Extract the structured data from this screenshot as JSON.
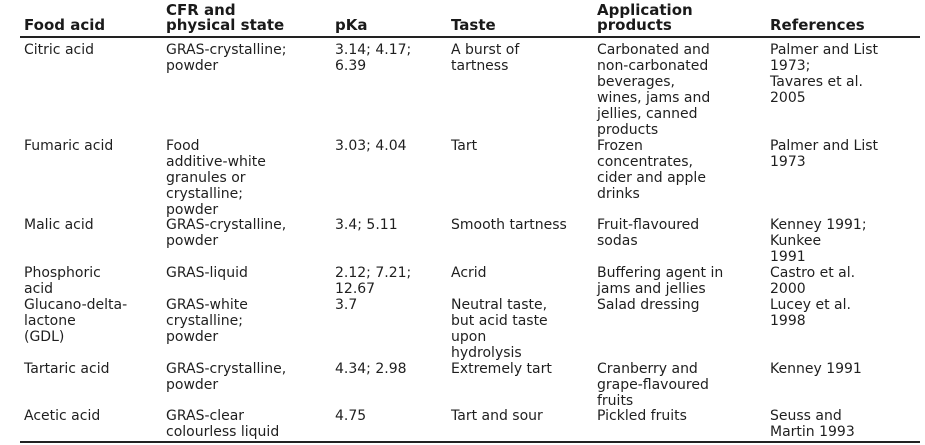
{
  "headers": {
    "food_acid": "Food acid",
    "cfr": "CFR and\nphysical state",
    "pka": "pKa",
    "taste": "Taste",
    "application": "Application\nproducts",
    "references": "References"
  },
  "rows": [
    {
      "food_acid": "Citric acid",
      "cfr": "GRAS-crystalline;\n   powder",
      "pka": "3.14; 4.17;\n   6.39",
      "taste": "A burst of\n   tartness",
      "application": "Carbonated and\n   non-carbonated\n   beverages,\n   wines, jams and\n   jellies, canned\n   products",
      "references": "Palmer and List\n   1973;\n   Tavares et al.\n   2005"
    },
    {
      "food_acid": "Fumaric acid",
      "cfr": "Food\n   additive-white\n   granules or\n   crystalline;\n   powder",
      "pka": "3.03; 4.04",
      "taste": "Tart",
      "application": "Frozen\n   concentrates,\n   cider and apple\n   drinks",
      "references": "Palmer and List\n   1973"
    },
    {
      "food_acid": "Malic acid",
      "cfr": "GRAS-crystalline,\n   powder",
      "pka": "3.4; 5.11",
      "taste": "Smooth tartness",
      "application": "Fruit-flavoured\n   sodas",
      "references": "Kenney 1991;\n   Kunkee\n   1991"
    },
    {
      "food_acid": "Phosphoric\n   acid",
      "cfr": "GRAS-liquid",
      "pka": "2.12; 7.21;\n   12.67",
      "taste": "Acrid",
      "application": "Buffering agent in\n   jams and jellies",
      "references": "Castro et al.\n   2000"
    },
    {
      "food_acid": "Glucano-delta-\n   lactone\n   (GDL)",
      "cfr": "GRAS-white\n   crystalline;\n   powder",
      "pka": "3.7",
      "taste": "Neutral taste,\n   but acid taste\n   upon\n   hydrolysis",
      "application": "Salad dressing",
      "references": "Lucey et al.\n   1998"
    },
    {
      "food_acid": "Tartaric acid",
      "cfr": "GRAS-crystalline,\n   powder",
      "pka": "4.34; 2.98",
      "taste": "Extremely tart",
      "application": "Cranberry and\n   grape-flavoured\n   fruits",
      "references": "Kenney 1991"
    },
    {
      "food_acid": "Acetic acid",
      "cfr": "GRAS-clear\n   colourless liquid",
      "pka": "4.75",
      "taste": "Tart and sour",
      "application": "Pickled fruits",
      "references": "Seuss and\n   Martin 1993"
    }
  ]
}
